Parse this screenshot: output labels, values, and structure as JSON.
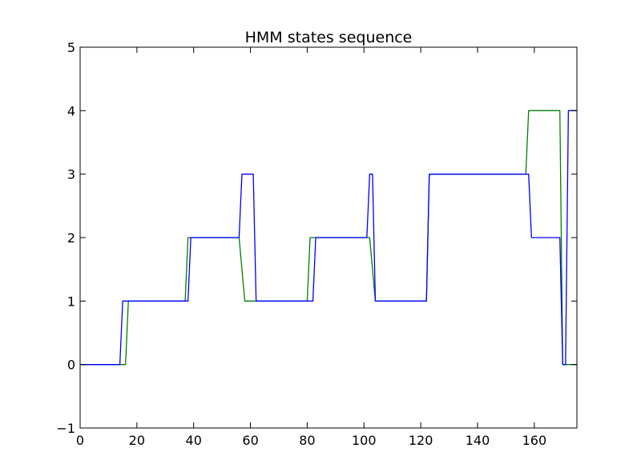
{
  "chart_data": {
    "type": "line",
    "title": "HMM states sequence",
    "xlabel": "",
    "ylabel": "",
    "xlim": [
      0,
      175
    ],
    "ylim": [
      -1,
      5
    ],
    "xticks": [
      0,
      20,
      40,
      60,
      80,
      100,
      120,
      140,
      160
    ],
    "yticks": [
      -1,
      0,
      1,
      2,
      3,
      4,
      5
    ],
    "grid": false,
    "legend": "none",
    "series": [
      {
        "color": "#008000",
        "x": [
          0,
          16,
          17,
          37,
          38,
          56,
          58,
          80,
          81,
          102,
          104,
          122,
          123,
          157,
          158,
          169,
          170,
          175
        ],
        "y": [
          0,
          0,
          1,
          1,
          2,
          2,
          1,
          1,
          2,
          2,
          1,
          1,
          3,
          3,
          4,
          4,
          0,
          0
        ]
      },
      {
        "color": "#0000ff",
        "x": [
          0,
          14,
          15,
          38,
          39,
          56,
          57,
          61,
          62,
          82,
          83,
          101,
          102,
          103,
          104,
          122,
          123,
          158,
          159,
          169,
          170,
          171,
          172,
          175
        ],
        "y": [
          0,
          0,
          1,
          1,
          2,
          2,
          3,
          3,
          1,
          1,
          2,
          2,
          3,
          3,
          1,
          1,
          3,
          3,
          2,
          2,
          0,
          0,
          4,
          4
        ]
      }
    ]
  }
}
